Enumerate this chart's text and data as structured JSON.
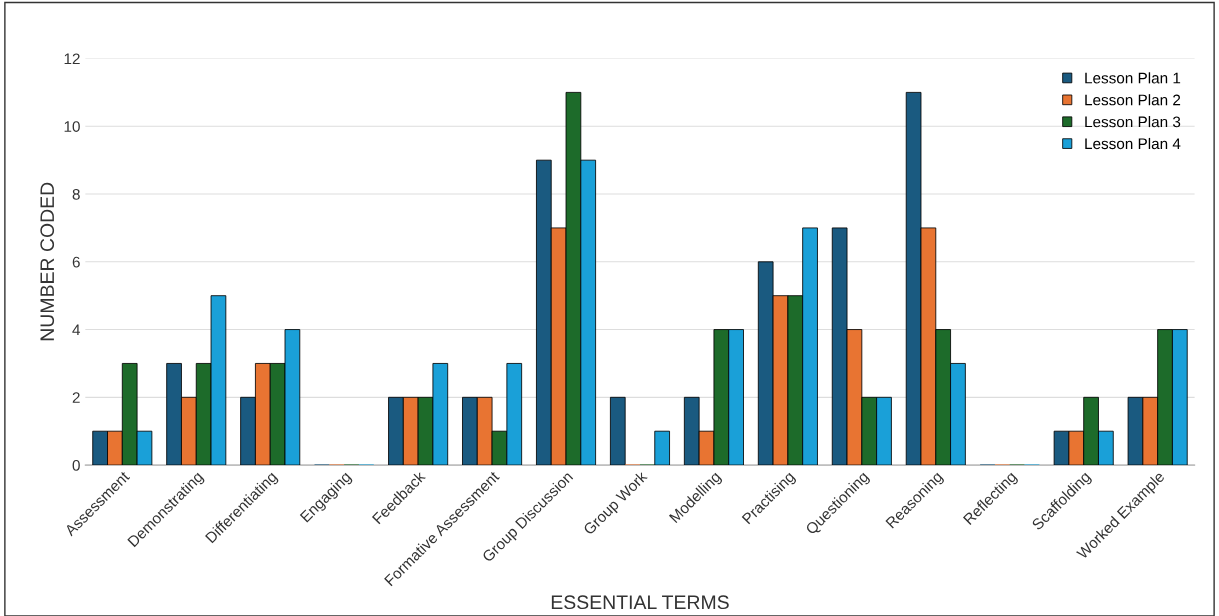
{
  "chart_data": {
    "type": "bar",
    "xlabel": "ESSENTIAL TERMS",
    "ylabel": "NUMBER CODED",
    "categories": [
      "Assessment",
      "Demonstrating",
      "Differentiating",
      "Engaging",
      "Feedback",
      "Formative Assessment",
      "Group Discussion",
      "Group Work",
      "Modelling",
      "Practising",
      "Questioning",
      "Reasoning",
      "Reflecting",
      "Scaffolding",
      "Worked Example"
    ],
    "series": [
      {
        "name": "Lesson Plan 1",
        "color": "#1a5a80",
        "values": [
          1,
          3,
          2,
          0,
          2,
          2,
          9,
          2,
          2,
          6,
          7,
          11,
          0,
          1,
          2
        ]
      },
      {
        "name": "Lesson Plan 2",
        "color": "#e87432",
        "values": [
          1,
          2,
          3,
          0,
          2,
          2,
          7,
          0,
          1,
          5,
          4,
          7,
          0,
          1,
          2
        ]
      },
      {
        "name": "Lesson Plan 3",
        "color": "#1d6b2a",
        "values": [
          3,
          3,
          3,
          0,
          2,
          1,
          11,
          0,
          4,
          5,
          2,
          4,
          0,
          2,
          4
        ]
      },
      {
        "name": "Lesson Plan 4",
        "color": "#1aa0d8",
        "values": [
          1,
          5,
          4,
          0,
          3,
          3,
          9,
          1,
          4,
          7,
          2,
          3,
          0,
          1,
          4
        ]
      }
    ],
    "ylim": [
      0,
      12
    ],
    "yticks": [
      0,
      2,
      4,
      6,
      8,
      10,
      12
    ],
    "grid": "y",
    "legend": "top right"
  }
}
